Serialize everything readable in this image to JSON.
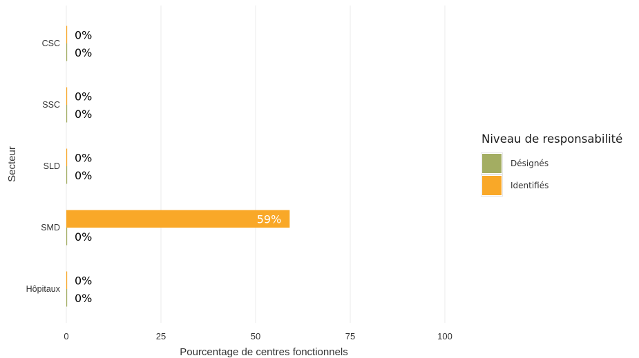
{
  "chart_data": {
    "type": "bar",
    "orientation": "horizontal",
    "categories": [
      "CSC",
      "SSC",
      "SLD",
      "SMD",
      "Hôpitaux"
    ],
    "series": [
      {
        "name": "Identifiés",
        "values": [
          0,
          0,
          0,
          59,
          0
        ],
        "labels": [
          "0%",
          "0%",
          "0%",
          "59%",
          "0%"
        ]
      },
      {
        "name": "Désignés",
        "values": [
          0,
          0,
          0,
          0,
          0
        ],
        "labels": [
          "0%",
          "0%",
          "0%",
          "0%",
          "0%"
        ]
      }
    ],
    "xlabel": "Pourcentage de centres fonctionnels",
    "ylabel": "Secteur",
    "xlim": [
      0,
      100
    ],
    "xticks": [
      0,
      25,
      50,
      75,
      100
    ],
    "grid": "vertical",
    "legend_title": "Niveau de responsabilité",
    "legend_position": "right",
    "legend": [
      {
        "name": "Désignés",
        "color": "#a3ad62"
      },
      {
        "name": "Identifiés",
        "color": "#f9a828"
      }
    ]
  }
}
